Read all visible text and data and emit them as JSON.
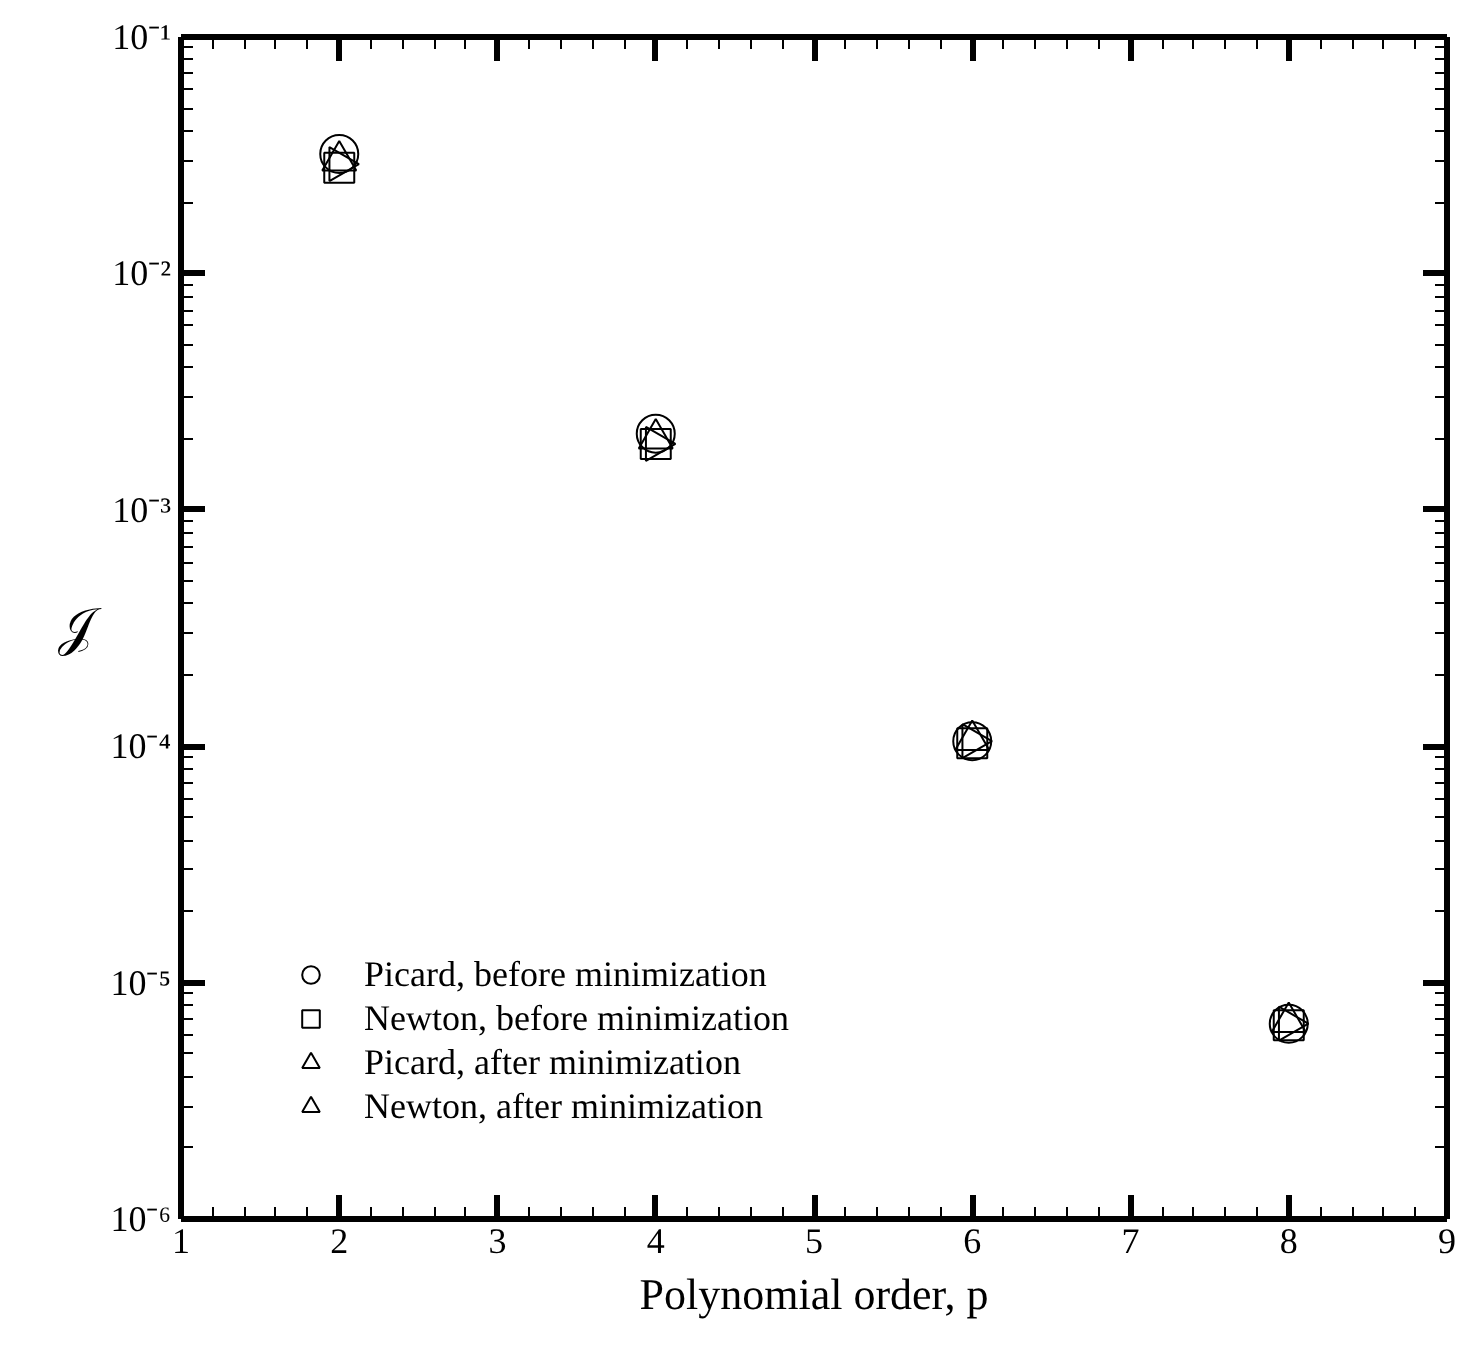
{
  "chart_data": {
    "type": "scatter",
    "xlabel": "Polynomial order, p",
    "ylabel": "𝒥",
    "log": "y",
    "xlim": [
      1,
      9
    ],
    "xticks": [
      1,
      2,
      3,
      4,
      5,
      6,
      7,
      8,
      9
    ],
    "ylim": [
      1e-06,
      0.1
    ],
    "yticks": [
      {
        "value": 1e-06,
        "label": "10⁻⁶"
      },
      {
        "value": 1e-05,
        "label": "10⁻⁵"
      },
      {
        "value": 0.0001,
        "label": "10⁻⁴"
      },
      {
        "value": 0.001,
        "label": "10⁻³"
      },
      {
        "value": 0.01,
        "label": "10⁻²"
      },
      {
        "value": 0.1,
        "label": "10⁻¹"
      }
    ],
    "grid": false,
    "legend": "bottom left",
    "x": [
      2,
      4,
      6,
      8
    ],
    "series": [
      {
        "name": "Picard, before minimization",
        "color": "#000000",
        "marker": "circle",
        "values": [
          0.032,
          0.0021,
          0.000105,
          6.7e-06
        ]
      },
      {
        "name": "Newton, before minimization",
        "color": "#000000",
        "marker": "square",
        "values": [
          0.028,
          0.0019,
          0.000103,
          6.6e-06
        ]
      },
      {
        "name": "Picard, after minimization",
        "color": "#000000",
        "marker": "triangle",
        "values": [
          0.03,
          0.002,
          0.000106,
          6.8e-06
        ]
      },
      {
        "name": "Newton, after minimization",
        "color": "#000000",
        "marker": "triangle_right",
        "values": [
          0.029,
          0.0019,
          0.000105,
          6.7e-06
        ]
      }
    ]
  }
}
